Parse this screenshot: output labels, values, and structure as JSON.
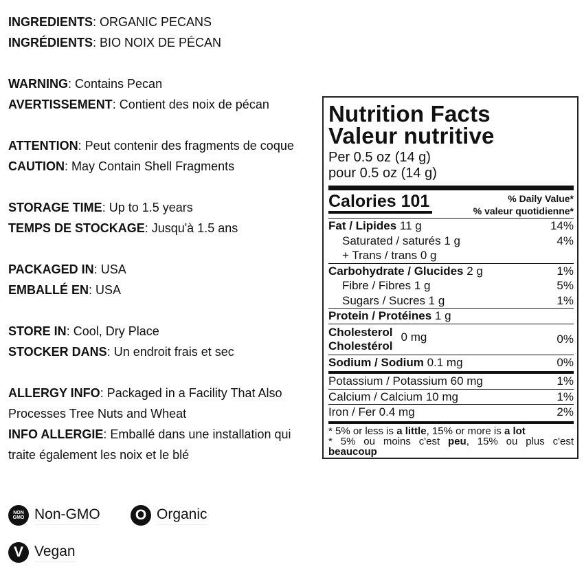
{
  "info": [
    {
      "label": "INGREDIENTS",
      "text": ": ORGANIC PECANS"
    },
    {
      "label": "INGRÉDIENTS",
      "text": ": BIO NOIX DE PÉCAN"
    },
    {
      "gap": true
    },
    {
      "label": "WARNING",
      "text": ": Contains Pecan"
    },
    {
      "label": "AVERTISSEMENT",
      "text": ": Contient des noix de pécan"
    },
    {
      "gap": true
    },
    {
      "label": "ATTENTION",
      "text": ": Peut contenir des fragments de coque"
    },
    {
      "label": "CAUTION",
      "text": ": May Contain Shell Fragments"
    },
    {
      "gap": true
    },
    {
      "label": "STORAGE TIME",
      "text": ": Up to 1.5 years"
    },
    {
      "label": "TEMPS DE STOCKAGE",
      "text": ": Jusqu'à 1.5 ans"
    },
    {
      "gap": true
    },
    {
      "label": "PACKAGED IN",
      "text": ": USA"
    },
    {
      "label": "EMBALLÉ EN",
      "text": ": USA"
    },
    {
      "gap": true
    },
    {
      "label": "STORE IN",
      "text": ": Cool, Dry Place"
    },
    {
      "label": "STOCKER DANS",
      "text": ": Un endroit frais et sec"
    },
    {
      "gap": true
    },
    {
      "label": "ALLERGY INFO",
      "text": ": Packaged in a Facility That Also Processes Tree Nuts and Wheat"
    },
    {
      "label": "INFO ALLERGIE",
      "text": ": Emballé dans une installation qui traite également les noix et le blé"
    }
  ],
  "badges": [
    {
      "label": "Non-GMO",
      "icon": "non-gmo-icon",
      "glyph": "NON GMO"
    },
    {
      "label": "Organic",
      "icon": "organic-icon",
      "glyph": "O"
    },
    {
      "label": "Vegan",
      "icon": "vegan-icon",
      "glyph": "V"
    }
  ],
  "nutrition": {
    "title_en": "Nutrition Facts",
    "title_fr": "Valeur nutritive",
    "serving_en": "Per 0.5 oz (14 g)",
    "serving_fr": "pour 0.5 oz (14 g)",
    "calories": "Calories 101",
    "dv_en": "% Daily Value*",
    "dv_fr": "% valeur quotidienne*",
    "fat": {
      "name": "Fat / Lipides",
      "amount": " 11 g",
      "dv": "14%"
    },
    "saturated": {
      "name": "Saturated / saturés 1 g",
      "dv": "4%"
    },
    "trans": {
      "name": "+ Trans / trans 0 g",
      "dv": ""
    },
    "carb": {
      "name": "Carbohydrate / Glucides",
      "amount": " 2 g",
      "dv": "1%"
    },
    "fibre": {
      "name": "Fibre / Fibres 1 g",
      "dv": "5%"
    },
    "sugars": {
      "name": "Sugars / Sucres 1 g",
      "dv": "1%"
    },
    "protein": {
      "name": "Protein / Protéines",
      "amount": " 1 g"
    },
    "cholesterol": {
      "name_en": "Cholesterol",
      "name_fr": "Cholestérol",
      "amount": "0 mg",
      "dv": "0%"
    },
    "sodium": {
      "name": "Sodium / Sodium",
      "amount": " 0.1 mg",
      "dv": "0%"
    },
    "potassium": {
      "name": "Potassium / Potassium 60 mg",
      "dv": "1%"
    },
    "calcium": {
      "name": "Calcium / Calcium 10 mg",
      "dv": "1%"
    },
    "iron": {
      "name": "Iron / Fer 0.4 mg",
      "dv": "2%"
    },
    "foot_en": {
      "a": "* 5% or less is ",
      "b": "a little",
      "c": ", 15% or more is ",
      "d": "a lot"
    },
    "foot_fr": {
      "a": "* 5% ou moins c'est ",
      "b": "peu",
      "c": ", 15% ou plus c'est ",
      "d": "beaucoup"
    }
  }
}
